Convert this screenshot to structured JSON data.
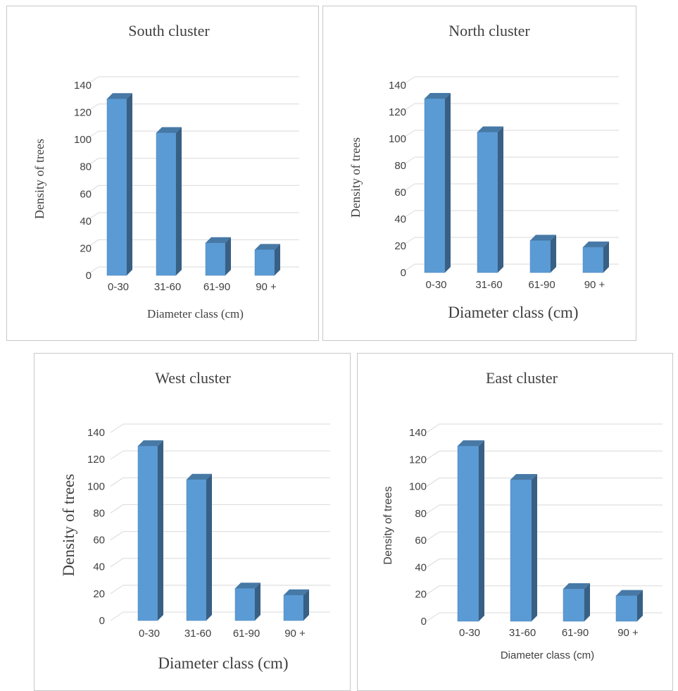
{
  "chart_data": [
    {
      "type": "bar",
      "title": "South cluster",
      "categories": [
        "0-30",
        "31-60",
        "61-90",
        "90 +"
      ],
      "values": [
        130,
        105,
        24,
        19
      ],
      "xlabel": "Diameter class (cm)",
      "ylabel": "Density of trees",
      "ylim": [
        0,
        140
      ],
      "yticks": [
        "0",
        "20",
        "40",
        "60",
        "80",
        "100",
        "120",
        "140"
      ],
      "grid": true,
      "color": "#5b9bd5"
    },
    {
      "type": "bar",
      "title": "North cluster",
      "categories": [
        "0-30",
        "31-60",
        "61-90",
        "90 +"
      ],
      "values": [
        130,
        105,
        24,
        19
      ],
      "xlabel": "Diameter class (cm)",
      "ylabel": "Density of trees",
      "ylim": [
        0,
        140
      ],
      "yticks": [
        "0",
        "20",
        "40",
        "60",
        "80",
        "100",
        "120",
        "140"
      ],
      "grid": true,
      "color": "#5b9bd5"
    },
    {
      "type": "bar",
      "title": "West cluster",
      "categories": [
        "0-30",
        "31-60",
        "61-90",
        "90 +"
      ],
      "values": [
        130,
        105,
        24,
        19
      ],
      "xlabel": "Diameter class (cm)",
      "ylabel": "Density of trees",
      "ylim": [
        0,
        140
      ],
      "yticks": [
        "0",
        "20",
        "40",
        "60",
        "80",
        "100",
        "120",
        "140"
      ],
      "grid": true,
      "color": "#5b9bd5"
    },
    {
      "type": "bar",
      "title": "East cluster",
      "categories": [
        "0-30",
        "31-60",
        "61-90",
        "90 +"
      ],
      "values": [
        130,
        105,
        24,
        19
      ],
      "xlabel": "Diameter class (cm)",
      "ylabel": "Density of trees",
      "ylim": [
        0,
        140
      ],
      "yticks": [
        "0",
        "20",
        "40",
        "60",
        "80",
        "100",
        "120",
        "140"
      ],
      "grid": true,
      "color": "#5b9bd5"
    }
  ]
}
